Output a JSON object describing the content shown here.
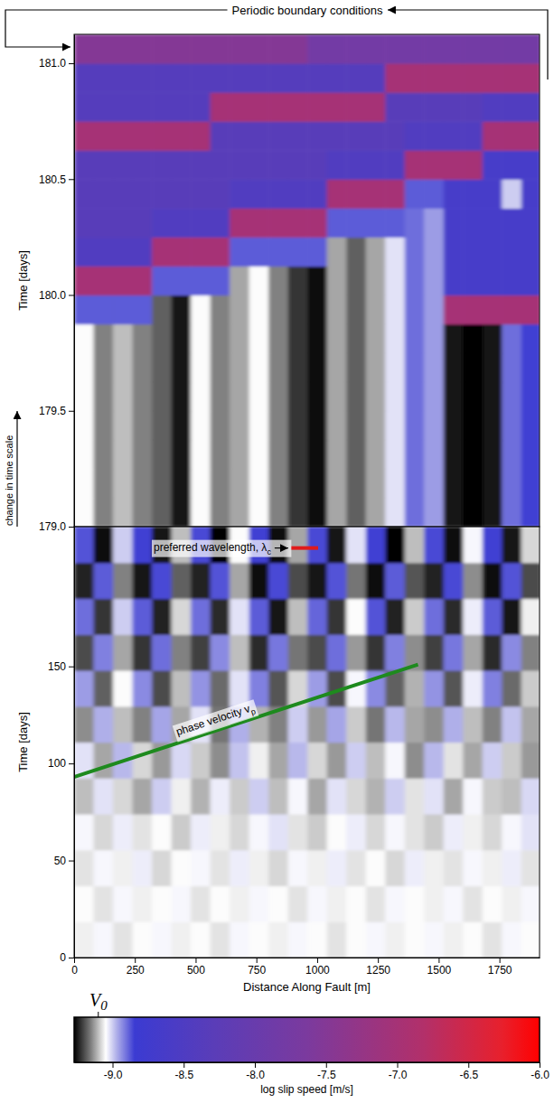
{
  "chart_data": {
    "type": "heatmap",
    "xlabel": "Distance Along Fault [m]",
    "xlim": [
      0,
      1915
    ],
    "xticks": [
      0,
      250,
      500,
      750,
      1000,
      1250,
      1500,
      1750
    ],
    "xbins": [
      0,
      80,
      160,
      240,
      320,
      400,
      480,
      560,
      640,
      720,
      800,
      880,
      960,
      1040,
      1120,
      1200,
      1280,
      1360,
      1440,
      1520,
      1600,
      1680,
      1760,
      1840,
      1920
    ],
    "panels": [
      {
        "ylabel": "Time [days]",
        "ylim": [
          179,
          181.125
        ],
        "yticks": [
          {
            "value": 179,
            "label": "179.0"
          },
          179.5,
          {
            "value": 180,
            "label": "180.0"
          },
          180.5,
          {
            "value": 181,
            "label": "181.0"
          }
        ],
        "ybins": [
          179,
          179.125,
          179.25,
          179.375,
          179.5,
          179.625,
          179.75,
          179.875,
          180,
          180.125,
          180.25,
          180.375,
          180.5,
          180.625,
          180.75,
          180.875,
          181,
          181.125
        ],
        "cells": [
          [
            -9.05,
            -9.15,
            -9.1,
            -9.15,
            -9.18,
            -9.25,
            -9.05,
            -9.15,
            -9.12,
            -9.05,
            -9.15,
            -9.22,
            -9.26,
            -9.12,
            -9.18,
            -9.12,
            -9.02,
            -8.9,
            -8.95,
            -9.25,
            -9.27,
            -9.25,
            -8.9,
            -8.85
          ],
          [
            -9.05,
            -9.15,
            -9.1,
            -9.15,
            -9.18,
            -9.25,
            -9.05,
            -9.15,
            -9.12,
            -9.05,
            -9.15,
            -9.22,
            -9.26,
            -9.12,
            -9.18,
            -9.12,
            -9.02,
            -8.9,
            -8.95,
            -9.25,
            -9.27,
            -9.25,
            -8.9,
            -8.85
          ],
          [
            -9.05,
            -9.15,
            -9.1,
            -9.15,
            -9.18,
            -9.25,
            -9.05,
            -9.15,
            -9.12,
            -9.05,
            -9.15,
            -9.22,
            -9.26,
            -9.12,
            -9.18,
            -9.12,
            -9.02,
            -8.9,
            -8.95,
            -9.25,
            -9.27,
            -9.25,
            -8.9,
            -8.85
          ],
          [
            -9.05,
            -9.15,
            -9.1,
            -9.15,
            -9.18,
            -9.25,
            -9.05,
            -9.15,
            -9.12,
            -9.05,
            -9.15,
            -9.22,
            -9.26,
            -9.12,
            -9.18,
            -9.12,
            -9.02,
            -8.9,
            -8.95,
            -9.25,
            -9.27,
            -9.25,
            -8.9,
            -8.85
          ],
          [
            -9.05,
            -9.15,
            -9.1,
            -9.15,
            -9.18,
            -9.25,
            -9.05,
            -9.15,
            -9.12,
            -9.05,
            -9.15,
            -9.22,
            -9.26,
            -9.12,
            -9.18,
            -9.12,
            -9.02,
            -8.9,
            -8.95,
            -9.25,
            -9.27,
            -9.25,
            -8.9,
            -8.85
          ],
          [
            -9.05,
            -9.15,
            -9.1,
            -9.15,
            -9.18,
            -9.25,
            -9.05,
            -9.15,
            -9.12,
            -9.05,
            -9.15,
            -9.22,
            -9.26,
            -9.12,
            -9.18,
            -9.12,
            -9.02,
            -8.9,
            -8.95,
            -9.25,
            -9.27,
            -9.25,
            -8.9,
            -8.85
          ],
          [
            -9.05,
            -9.15,
            -9.1,
            -9.15,
            -9.18,
            -9.25,
            -9.05,
            -9.15,
            -9.12,
            -9.05,
            -9.15,
            -9.22,
            -9.26,
            -9.12,
            -9.18,
            -9.12,
            -9.02,
            -8.9,
            -8.95,
            -9.25,
            -9.27,
            -9.25,
            -8.9,
            -8.85
          ],
          [
            -8.88,
            -8.88,
            -8.88,
            -8.88,
            -9.18,
            -9.25,
            -9.05,
            -9.15,
            -9.12,
            -9.05,
            -9.15,
            -9.22,
            -9.26,
            -9.12,
            -9.18,
            -9.12,
            -9.02,
            -8.9,
            -8.95,
            -7,
            -7,
            -7,
            -7,
            -7
          ],
          [
            -7,
            -7,
            -7,
            -7,
            -8.88,
            -8.88,
            -8.88,
            -8.88,
            -9.12,
            -9.05,
            -9.15,
            -9.22,
            -9.26,
            -9.12,
            -9.18,
            -9.12,
            -9.02,
            -8.9,
            -8.95,
            -8.65,
            -8.65,
            -8.65,
            -8.65,
            -8.65
          ],
          [
            -8.45,
            -8.45,
            -8.45,
            -8.45,
            -7,
            -7,
            -7,
            -7,
            -8.88,
            -8.88,
            -8.88,
            -8.88,
            -8.88,
            -9.12,
            -9.18,
            -9.12,
            -9.02,
            -8.9,
            -8.95,
            -8.65,
            -8.65,
            -8.65,
            -8.65,
            -8.65
          ],
          [
            -8.3,
            -8.3,
            -8.3,
            -8.3,
            -8.45,
            -8.45,
            -8.45,
            -8.45,
            -7,
            -7,
            -7,
            -7,
            -7,
            -8.88,
            -8.88,
            -8.88,
            -8.88,
            -8.9,
            -8.95,
            -8.65,
            -8.65,
            -8.65,
            -8.65,
            -8.65
          ],
          [
            -8.3,
            -8.3,
            -8.3,
            -8.3,
            -8.3,
            -8.3,
            -8.3,
            -8.3,
            -8.45,
            -8.45,
            -8.45,
            -8.45,
            -8.45,
            -7,
            -7,
            -7,
            -7,
            -8.88,
            -8.88,
            -8.65,
            -8.65,
            -8.65,
            -9,
            -8.65
          ],
          [
            -8.3,
            -8.3,
            -8.3,
            -8.3,
            -8.3,
            -8.3,
            -8.3,
            -8.3,
            -8.3,
            -8.3,
            -8.3,
            -8.3,
            -8.3,
            -8.45,
            -8.45,
            -8.45,
            -8.45,
            -7,
            -7,
            -7,
            -7,
            -8.65,
            -8.65,
            -8.65
          ],
          [
            -7,
            -7,
            -7,
            -7,
            -7,
            -7,
            -7,
            -8.3,
            -8.3,
            -8.3,
            -8.3,
            -8.3,
            -8.3,
            -8.3,
            -8.3,
            -8.3,
            -8.3,
            -8.45,
            -8.45,
            -8.45,
            -8.45,
            -7,
            -7,
            -7
          ],
          [
            -8.38,
            -8.38,
            -8.38,
            -8.38,
            -8.38,
            -8.38,
            -8.38,
            -7,
            -7,
            -7,
            -7,
            -7,
            -7,
            -7,
            -7,
            -7,
            -8.3,
            -8.3,
            -8.3,
            -8.3,
            -8.3,
            -8.45,
            -8.45,
            -8.45
          ],
          [
            -8.38,
            -8.38,
            -8.38,
            -8.38,
            -8.38,
            -8.38,
            -8.38,
            -8.38,
            -8.38,
            -8.38,
            -8.38,
            -8.38,
            -8.38,
            -8.38,
            -8.38,
            -8.38,
            -7,
            -7,
            -7,
            -7,
            -7,
            -7,
            -7,
            -7
          ],
          [
            -7.5,
            -7.5,
            -7.5,
            -7.5,
            -7.5,
            -7.5,
            -7.5,
            -7.5,
            -7.5,
            -7.5,
            -7.5,
            -7.5,
            -7.8,
            -7.8,
            -7.8,
            -7.8,
            -7.8,
            -7.8,
            -7.8,
            -7.8,
            -7.8,
            -7.8,
            -7.8,
            -7.8
          ]
        ]
      },
      {
        "ylabel": "Time [days]",
        "ylim": [
          0,
          222
        ],
        "yticks": [
          0,
          50,
          100,
          150
        ],
        "ybins": [
          0,
          18.5,
          37,
          55.5,
          74,
          92.5,
          111,
          129.5,
          148,
          166.5,
          185,
          203.5,
          222
        ],
        "cells": [
          [
            -9.06,
            -9.04,
            -9.07,
            -9.05,
            -9.04,
            -9.06,
            -9.05,
            -9.07,
            -9.04,
            -9.05,
            -9.06,
            -9.04,
            -9.05,
            -9.07,
            -9.05,
            -9.04,
            -9.06,
            -9.05,
            -9.04,
            -9.06,
            -9.05,
            -9.07,
            -9.04,
            -9.05
          ],
          [
            -9.05,
            -9.07,
            -9.04,
            -9.06,
            -9.05,
            -9.04,
            -9.07,
            -9.05,
            -9.06,
            -9.04,
            -9.05,
            -9.07,
            -9.04,
            -9.06,
            -9.05,
            -9.07,
            -9.04,
            -9.05,
            -9.06,
            -9.04,
            -9.07,
            -9.05,
            -9.06,
            -9.04
          ],
          [
            -9.07,
            -9.04,
            -9.06,
            -9.03,
            -9.08,
            -9.05,
            -9.04,
            -9.07,
            -9.03,
            -9.06,
            -9.08,
            -9.04,
            -9.06,
            -9.03,
            -9.07,
            -9.05,
            -9.08,
            -9.03,
            -9.06,
            -9.07,
            -9.04,
            -9.06,
            -9.03,
            -9.07
          ],
          [
            -9.04,
            -9.08,
            -9.03,
            -9.07,
            -9.05,
            -9.09,
            -9.03,
            -9.06,
            -9.08,
            -9.04,
            -9.02,
            -9.07,
            -9.09,
            -9.05,
            -9.03,
            -9.08,
            -9.04,
            -9.07,
            -9.09,
            -9.03,
            -9.06,
            -9.08,
            -9.04,
            -9.02
          ],
          [
            -9.1,
            -9.02,
            -9.08,
            -9.12,
            -9,
            -9.06,
            -9.11,
            -9.03,
            -9.09,
            -9,
            -9.1,
            -9.04,
            -9.12,
            -9.02,
            -9.08,
            -9.11,
            -9,
            -9.07,
            -9.02,
            -9.12,
            -9.04,
            -9.09,
            -9.1,
            -9.01
          ],
          [
            -9.02,
            -9.12,
            -8.98,
            -9.08,
            -9.13,
            -9.01,
            -9.09,
            -9.14,
            -8.99,
            -9.06,
            -9.12,
            -8.98,
            -9.08,
            -9.13,
            -9,
            -9.1,
            -9.04,
            -9.14,
            -8.98,
            -9.07,
            -9.12,
            -9,
            -9.09,
            -9.13
          ],
          [
            -9.14,
            -8.97,
            -9.1,
            -9.15,
            -8.96,
            -9.12,
            -9.02,
            -9.16,
            -8.97,
            -9.11,
            -9.15,
            -9,
            -9.13,
            -8.96,
            -9.09,
            -9.16,
            -8.98,
            -9.12,
            -9.14,
            -8.97,
            -9.1,
            -9.15,
            -8.99,
            -9.12
          ],
          [
            -8.95,
            -9.18,
            -9.05,
            -8.93,
            -9.2,
            -9.1,
            -8.94,
            -9.17,
            -9.02,
            -8.92,
            -9.19,
            -9.08,
            -8.95,
            -9.2,
            -9.04,
            -8.93,
            -9.18,
            -9.11,
            -8.94,
            -9.19,
            -9.03,
            -8.92,
            -9.17,
            -9.09
          ],
          [
            -9.2,
            -8.92,
            -9.12,
            -9.22,
            -8.9,
            -9.15,
            -9.21,
            -8.93,
            -9.1,
            -9.23,
            -8.91,
            -9.16,
            -9.2,
            -8.9,
            -9.13,
            -9.22,
            -8.92,
            -9.14,
            -9.21,
            -8.91,
            -9.12,
            -9.23,
            -8.93,
            -9.15
          ],
          [
            -8.9,
            -9.22,
            -9,
            -8.88,
            -9.24,
            -9.08,
            -8.9,
            -9.23,
            -9.02,
            -8.88,
            -9.25,
            -9.1,
            -8.89,
            -9.22,
            -9.05,
            -8.87,
            -9.24,
            -9.09,
            -8.9,
            -9.23,
            -9.03,
            -8.88,
            -9.25,
            -9.06
          ],
          [
            -9.24,
            -8.88,
            -9.15,
            -9.25,
            -8.86,
            -9.18,
            -9.24,
            -8.87,
            -9.12,
            -9.26,
            -8.86,
            -9.2,
            -9.25,
            -8.87,
            -9.16,
            -9.26,
            -8.88,
            -9.19,
            -9.24,
            -8.86,
            -9.14,
            -9.26,
            -8.87,
            -9.2
          ],
          [
            -8.87,
            -9.26,
            -9,
            -8.85,
            -9.25,
            -9.1,
            -8.86,
            -9.27,
            -9.05,
            -8.85,
            -9.26,
            -9.12,
            -8.86,
            -9.25,
            -9.02,
            -8.85,
            -9.27,
            -9.1,
            -8.86,
            -9.26,
            -9.04,
            -8.85,
            -9.25,
            -9.08
          ]
        ],
        "lines": [
          {
            "text": "phase velocity v",
            "subscript": "p",
            "color": "#1e8a1e",
            "x": [
              0,
              1415
            ],
            "y": [
              93,
              151
            ]
          },
          {
            "text": "preferred wavelength, λ",
            "subscript": "c",
            "color": "#e01b1b",
            "x": [
              892,
              1004
            ],
            "y": [
              211,
              211
            ]
          }
        ]
      }
    ],
    "colorbar": {
      "label": "log slip speed [m/s]",
      "range": [
        -9.27,
        -6.0
      ],
      "ticks": [
        {
          "value": -9,
          "label": "-9.0"
        },
        -8.5,
        {
          "value": -8,
          "label": "-8.0"
        },
        -7.5,
        {
          "value": -7,
          "label": "-7.0"
        },
        -6.5,
        {
          "value": -6,
          "label": "-6.0"
        }
      ],
      "reference": {
        "text": "V",
        "subscript": "0",
        "value": -9.1
      }
    },
    "annotations": [
      {
        "text": "Periodic boundary conditions"
      },
      {
        "text": "change in time scale"
      }
    ]
  }
}
